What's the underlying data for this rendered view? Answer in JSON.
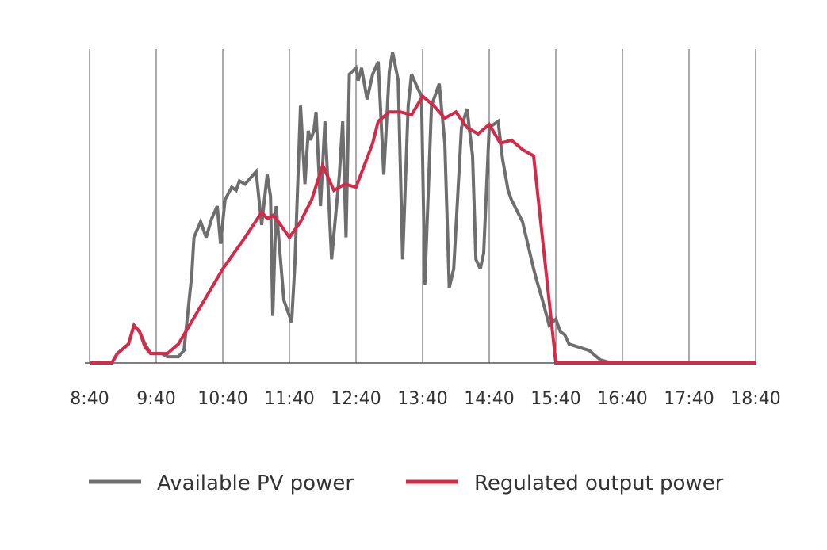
{
  "chart_data": {
    "type": "line",
    "title": "",
    "xlabel": "",
    "ylabel": "",
    "x_ticks": [
      "8:40",
      "9:40",
      "10:40",
      "11:40",
      "12:40",
      "13:40",
      "14:40",
      "15:40",
      "16:40",
      "17:40",
      "18:40"
    ],
    "xlim": [
      "8:40",
      "18:40"
    ],
    "ylim": [
      0,
      100
    ],
    "grid": "vertical lines at each hour tick",
    "legend": "bottom",
    "series": [
      {
        "name": "Available PV power",
        "color": "#6e6e6e",
        "points": [
          [
            "8:40",
            0
          ],
          [
            "9:00",
            0
          ],
          [
            "9:05",
            3
          ],
          [
            "9:15",
            6
          ],
          [
            "9:20",
            12
          ],
          [
            "9:25",
            10
          ],
          [
            "9:30",
            6
          ],
          [
            "9:35",
            3
          ],
          [
            "9:40",
            3
          ],
          [
            "9:45",
            3
          ],
          [
            "9:50",
            2
          ],
          [
            "10:00",
            2
          ],
          [
            "10:05",
            4
          ],
          [
            "10:12",
            28
          ],
          [
            "10:14",
            40
          ],
          [
            "10:20",
            45
          ],
          [
            "10:25",
            40
          ],
          [
            "10:30",
            46
          ],
          [
            "10:35",
            50
          ],
          [
            "10:38",
            38
          ],
          [
            "10:42",
            52
          ],
          [
            "10:48",
            56
          ],
          [
            "10:52",
            55
          ],
          [
            "10:55",
            58
          ],
          [
            "11:00",
            57
          ],
          [
            "11:05",
            59
          ],
          [
            "11:10",
            61
          ],
          [
            "11:15",
            44
          ],
          [
            "11:20",
            60
          ],
          [
            "11:23",
            53
          ],
          [
            "11:25",
            15
          ],
          [
            "11:28",
            50
          ],
          [
            "11:35",
            20
          ],
          [
            "11:42",
            13
          ],
          [
            "11:45",
            32
          ],
          [
            "11:50",
            82
          ],
          [
            "11:54",
            57
          ],
          [
            "11:57",
            74
          ],
          [
            "11:59",
            71
          ],
          [
            "12:02",
            74
          ],
          [
            "12:04",
            80
          ],
          [
            "12:08",
            50
          ],
          [
            "12:12",
            77
          ],
          [
            "12:18",
            33
          ],
          [
            "12:25",
            60
          ],
          [
            "12:28",
            77
          ],
          [
            "12:31",
            40
          ],
          [
            "12:34",
            92
          ],
          [
            "12:40",
            94
          ],
          [
            "12:42",
            90
          ],
          [
            "12:45",
            94
          ],
          [
            "12:50",
            84
          ],
          [
            "12:55",
            92
          ],
          [
            "13:00",
            96
          ],
          [
            "13:05",
            60
          ],
          [
            "13:10",
            93
          ],
          [
            "13:13",
            99
          ],
          [
            "13:18",
            90
          ],
          [
            "13:22",
            33
          ],
          [
            "13:27",
            82
          ],
          [
            "13:30",
            92
          ],
          [
            "13:35",
            88
          ],
          [
            "13:39",
            85
          ],
          [
            "13:42",
            25
          ],
          [
            "13:48",
            82
          ],
          [
            "13:55",
            89
          ],
          [
            "14:00",
            70
          ],
          [
            "14:04",
            24
          ],
          [
            "14:08",
            30
          ],
          [
            "14:15",
            75
          ],
          [
            "14:20",
            81
          ],
          [
            "14:25",
            66
          ],
          [
            "14:28",
            33
          ],
          [
            "14:32",
            30
          ],
          [
            "14:35",
            35
          ],
          [
            "14:40",
            75
          ],
          [
            "14:48",
            77
          ],
          [
            "14:52",
            65
          ],
          [
            "14:57",
            55
          ],
          [
            "15:00",
            52
          ],
          [
            "15:10",
            45
          ],
          [
            "15:20",
            30
          ],
          [
            "15:23",
            26
          ],
          [
            "15:28",
            20
          ],
          [
            "15:34",
            12
          ],
          [
            "15:40",
            14
          ],
          [
            "15:44",
            10
          ],
          [
            "15:48",
            9
          ],
          [
            "15:52",
            6
          ],
          [
            "16:10",
            4
          ],
          [
            "16:20",
            1
          ],
          [
            "16:30",
            0
          ],
          [
            "16:40",
            0
          ],
          [
            "17:40",
            0
          ],
          [
            "18:40",
            0
          ]
        ]
      },
      {
        "name": "Regulated output power",
        "color": "#d42a48",
        "points": [
          [
            "8:40",
            0
          ],
          [
            "9:00",
            0
          ],
          [
            "9:05",
            3
          ],
          [
            "9:15",
            6
          ],
          [
            "9:20",
            12
          ],
          [
            "9:25",
            10
          ],
          [
            "9:30",
            5
          ],
          [
            "9:35",
            3
          ],
          [
            "9:40",
            3
          ],
          [
            "9:45",
            3
          ],
          [
            "9:50",
            3
          ],
          [
            "10:00",
            6
          ],
          [
            "10:40",
            30
          ],
          [
            "11:00",
            40
          ],
          [
            "11:15",
            48
          ],
          [
            "11:20",
            46
          ],
          [
            "11:25",
            47
          ],
          [
            "11:30",
            45
          ],
          [
            "11:40",
            40
          ],
          [
            "11:50",
            45
          ],
          [
            "12:00",
            52
          ],
          [
            "12:10",
            63
          ],
          [
            "12:20",
            55
          ],
          [
            "12:30",
            57
          ],
          [
            "12:40",
            56
          ],
          [
            "12:55",
            70
          ],
          [
            "13:00",
            77
          ],
          [
            "13:10",
            80
          ],
          [
            "13:20",
            80
          ],
          [
            "13:30",
            79
          ],
          [
            "13:40",
            85
          ],
          [
            "13:50",
            82
          ],
          [
            "14:00",
            78
          ],
          [
            "14:10",
            80
          ],
          [
            "14:20",
            75
          ],
          [
            "14:30",
            73
          ],
          [
            "14:40",
            76
          ],
          [
            "14:50",
            70
          ],
          [
            "15:00",
            71
          ],
          [
            "15:10",
            68
          ],
          [
            "15:20",
            66
          ],
          [
            "15:40",
            0
          ],
          [
            "18:40",
            0
          ]
        ]
      }
    ]
  }
}
